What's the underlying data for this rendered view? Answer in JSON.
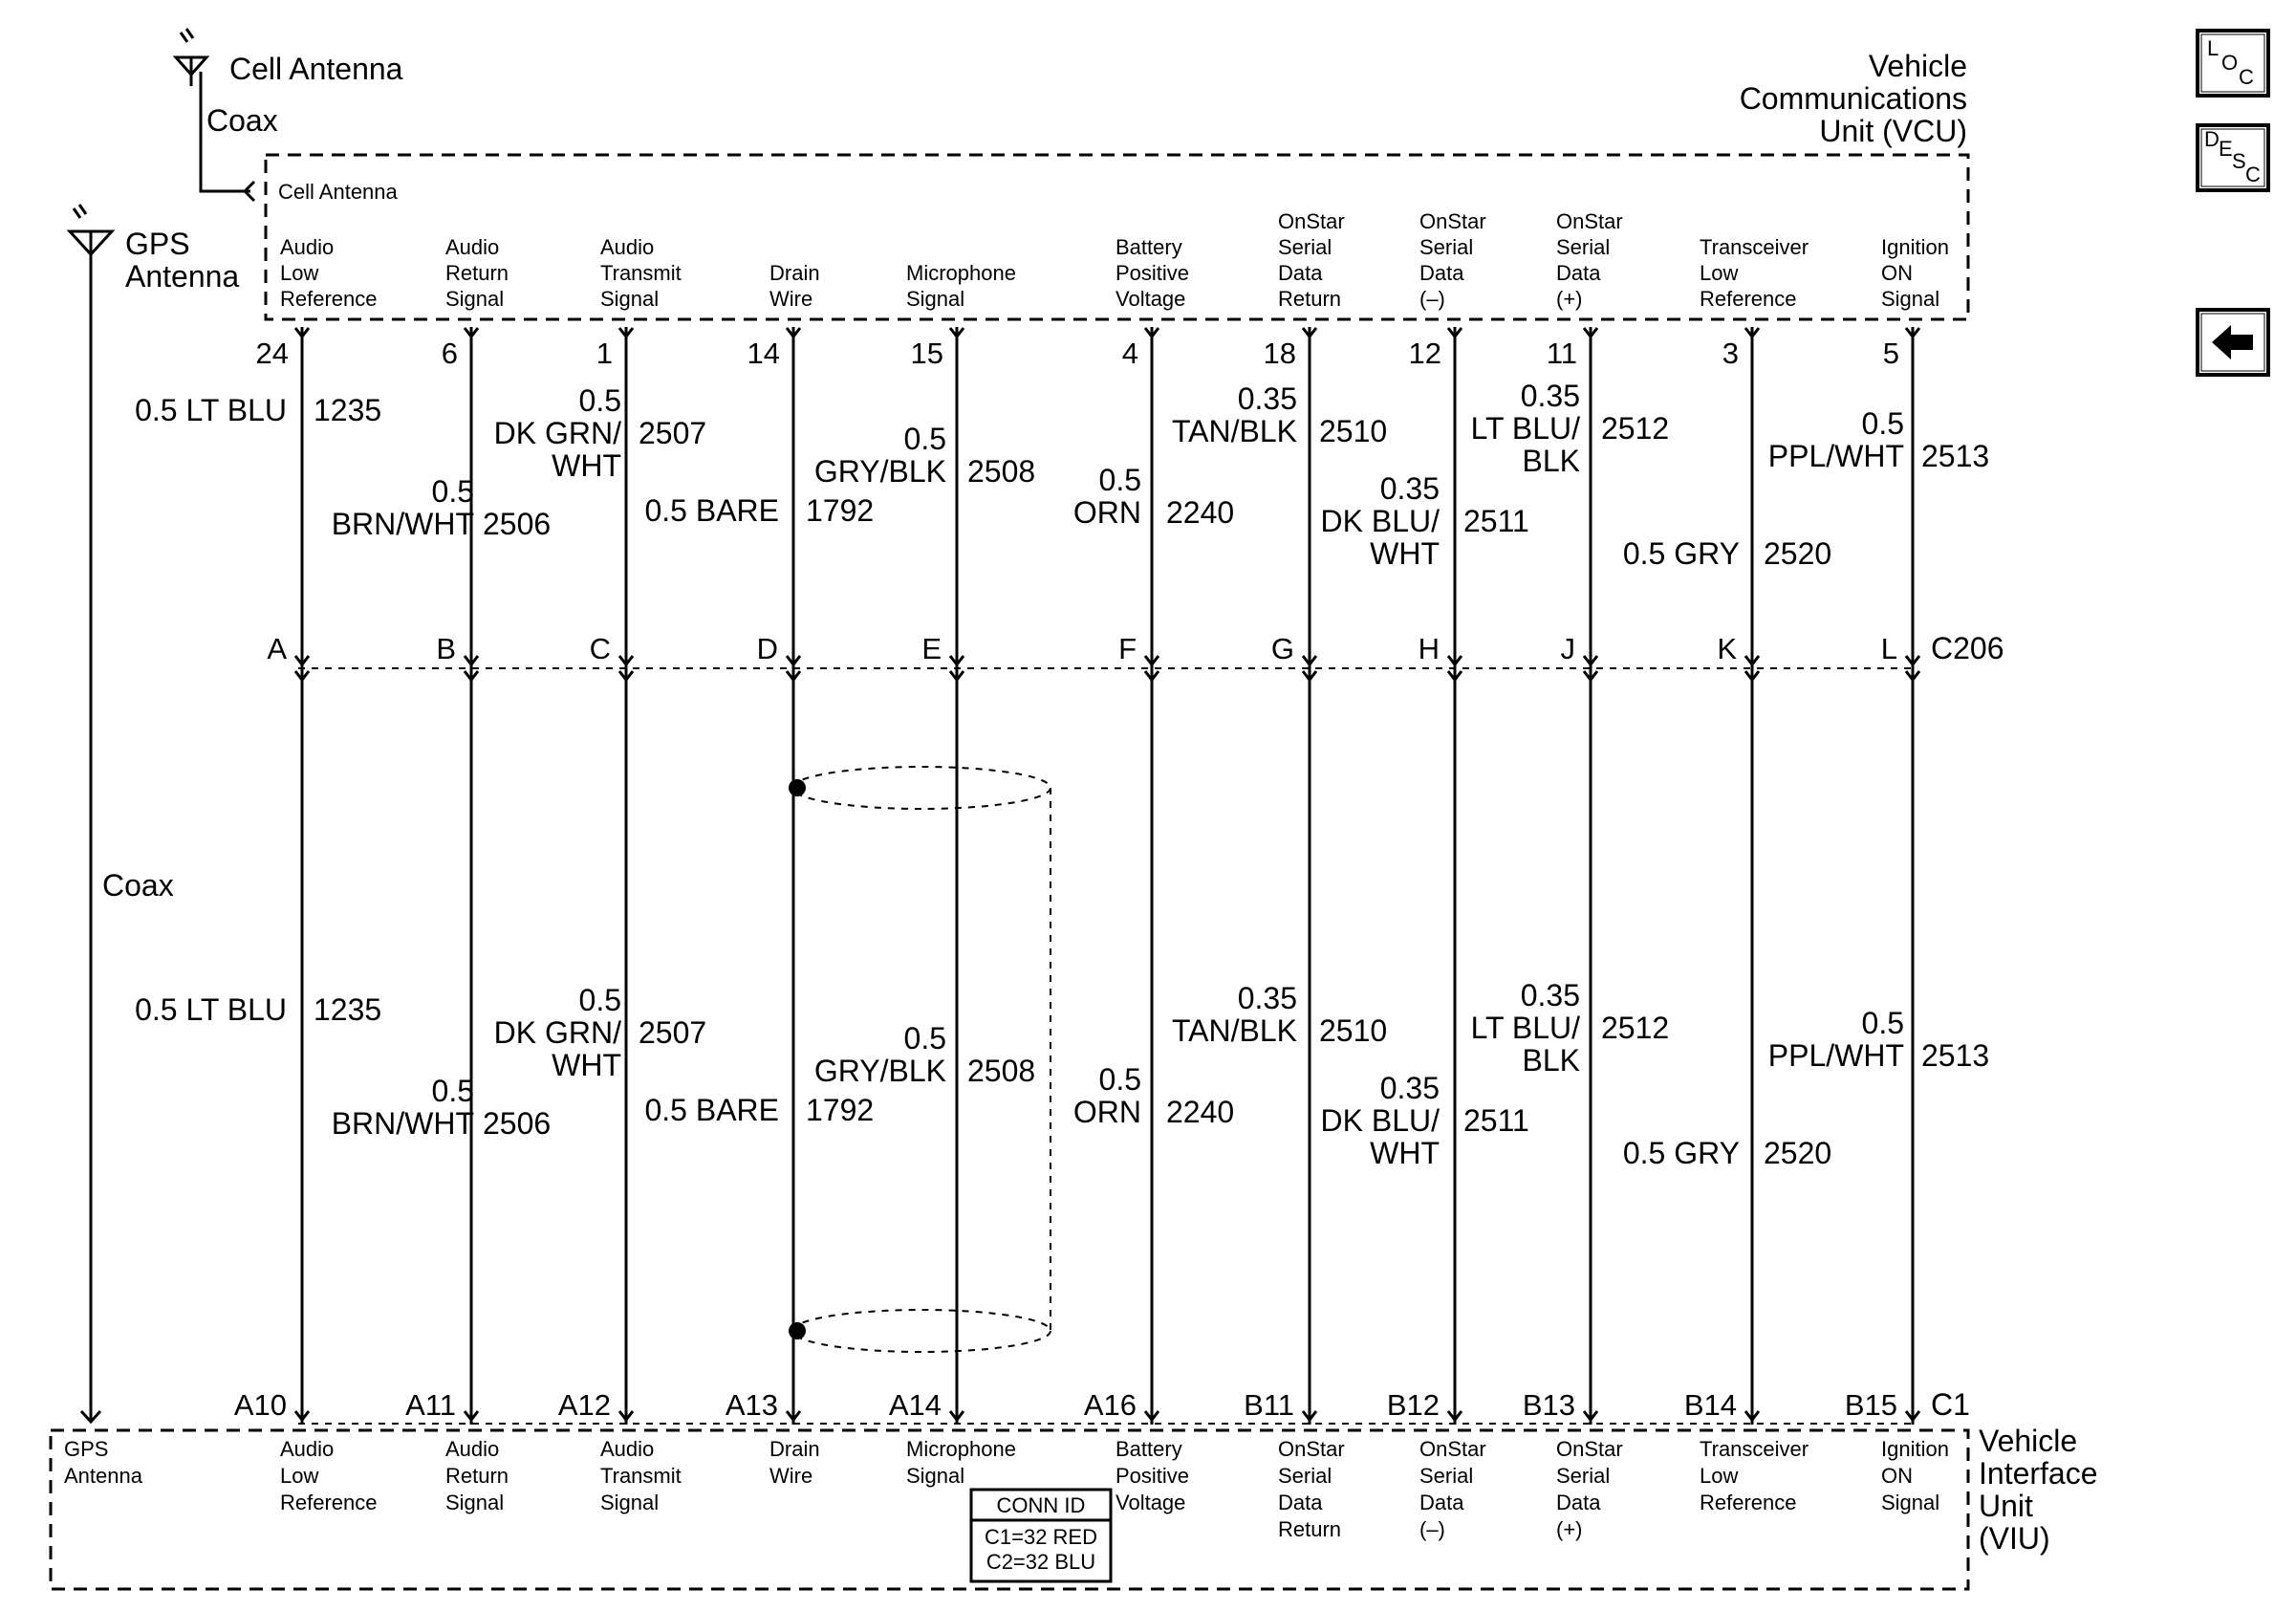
{
  "vcu": {
    "title": [
      "Vehicle",
      "Communications",
      "Unit (VCU)"
    ],
    "cell_antenna_port": "Cell Antenna"
  },
  "viu": {
    "title": [
      "Vehicle",
      "Interface",
      "Unit",
      "(VIU)"
    ],
    "gps_port": [
      "GPS",
      "Antenna"
    ]
  },
  "antennas": {
    "cell": {
      "label": "Cell Antenna",
      "cable": "Coax"
    },
    "gps": {
      "label": [
        "GPS",
        "Antenna"
      ],
      "cable": "Coax"
    }
  },
  "connectors": {
    "inline": "C206",
    "viu": "C1"
  },
  "conn_id": {
    "title": "CONN ID",
    "lines": [
      "C1=32 RED",
      "C2=32 BLU"
    ]
  },
  "nav_buttons": {
    "loc": "LOC",
    "desc": "DESC",
    "back": "back-arrow"
  },
  "circuits": [
    {
      "function": [
        "Audio",
        "Low",
        "Reference"
      ],
      "vcu_pin": "24",
      "c206_pin": "A",
      "viu_pin": "A10",
      "upper": {
        "wire": [
          "0.5 LT BLU"
        ],
        "circuit": "1235"
      },
      "lower": {
        "wire": [
          "0.5 LT BLU"
        ],
        "circuit": "1235"
      }
    },
    {
      "function": [
        "Audio",
        "Return",
        "Signal"
      ],
      "vcu_pin": "6",
      "c206_pin": "B",
      "viu_pin": "A11",
      "upper": {
        "wire": [
          "0.5",
          "BRN/WHT"
        ],
        "circuit": "2506"
      },
      "lower": {
        "wire": [
          "0.5",
          "BRN/WHT"
        ],
        "circuit": "2506"
      }
    },
    {
      "function": [
        "Audio",
        "Transmit",
        "Signal"
      ],
      "vcu_pin": "1",
      "c206_pin": "C",
      "viu_pin": "A12",
      "upper": {
        "wire": [
          "0.5",
          "DK GRN/",
          "WHT"
        ],
        "circuit": "2507"
      },
      "lower": {
        "wire": [
          "0.5",
          "DK GRN/",
          "WHT"
        ],
        "circuit": "2507"
      }
    },
    {
      "function": [
        "Drain",
        "Wire"
      ],
      "vcu_pin": "14",
      "c206_pin": "D",
      "viu_pin": "A13",
      "upper": {
        "wire": [
          "0.5 BARE"
        ],
        "circuit": "1792"
      },
      "lower": {
        "wire": [
          "0.5 BARE"
        ],
        "circuit": "1792"
      }
    },
    {
      "function": [
        "Microphone",
        "Signal"
      ],
      "vcu_pin": "15",
      "c206_pin": "E",
      "viu_pin": "A14",
      "upper": {
        "wire": [
          "0.5",
          "GRY/BLK"
        ],
        "circuit": "2508"
      },
      "lower": {
        "wire": [
          "0.5",
          "GRY/BLK"
        ],
        "circuit": "2508"
      }
    },
    {
      "function": [
        "Battery",
        "Positive",
        "Voltage"
      ],
      "vcu_pin": "4",
      "c206_pin": "F",
      "viu_pin": "A16",
      "upper": {
        "wire": [
          "0.5",
          "ORN"
        ],
        "circuit": "2240"
      },
      "lower": {
        "wire": [
          "0.5",
          "ORN"
        ],
        "circuit": "2240"
      }
    },
    {
      "function": [
        "OnStar",
        "Serial",
        "Data",
        "Return"
      ],
      "vcu_pin": "18",
      "c206_pin": "G",
      "viu_pin": "B11",
      "upper": {
        "wire": [
          "0.35",
          "TAN/BLK"
        ],
        "circuit": "2510"
      },
      "lower": {
        "wire": [
          "0.35",
          "TAN/BLK"
        ],
        "circuit": "2510"
      }
    },
    {
      "function": [
        "OnStar",
        "Serial",
        "Data",
        "(–)"
      ],
      "vcu_pin": "12",
      "c206_pin": "H",
      "viu_pin": "B12",
      "upper": {
        "wire": [
          "0.35",
          "DK BLU/",
          "WHT"
        ],
        "circuit": "2511"
      },
      "lower": {
        "wire": [
          "0.35",
          "DK BLU/",
          "WHT"
        ],
        "circuit": "2511"
      }
    },
    {
      "function": [
        "OnStar",
        "Serial",
        "Data",
        "(+)"
      ],
      "vcu_pin": "11",
      "c206_pin": "J",
      "viu_pin": "B13",
      "upper": {
        "wire": [
          "0.35",
          "LT BLU/",
          "BLK"
        ],
        "circuit": "2512"
      },
      "lower": {
        "wire": [
          "0.35",
          "LT BLU/",
          "BLK"
        ],
        "circuit": "2512"
      }
    },
    {
      "function": [
        "Transceiver",
        "Low",
        "Reference"
      ],
      "vcu_pin": "3",
      "c206_pin": "K",
      "viu_pin": "B14",
      "upper": {
        "wire": [
          "0.5 GRY"
        ],
        "circuit": "2520"
      },
      "lower": {
        "wire": [
          "0.5 GRY"
        ],
        "circuit": "2520"
      }
    },
    {
      "function": [
        "Ignition",
        "ON",
        "Signal"
      ],
      "vcu_pin": "5",
      "c206_pin": "L",
      "viu_pin": "B15",
      "upper": {
        "wire": [
          "0.5",
          "PPL/WHT"
        ],
        "circuit": "2513"
      },
      "lower": {
        "wire": [
          "0.5",
          "PPL/WHT"
        ],
        "circuit": "2513"
      }
    }
  ]
}
